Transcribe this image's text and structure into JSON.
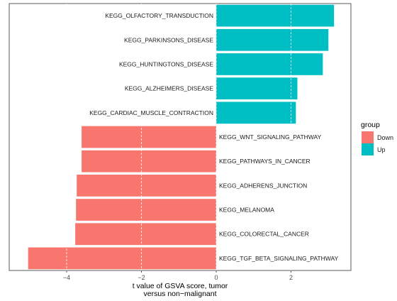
{
  "chart_data": {
    "type": "bar",
    "orientation": "horizontal",
    "xlabel": [
      "t value of GSVA score, tumor",
      "versus non−malignant"
    ],
    "ylabel": "",
    "xlim": [
      -5.4,
      3.4
    ],
    "xticks": [
      -4,
      -2,
      0,
      2
    ],
    "xtick_labels": [
      "−4",
      "−2",
      "0",
      "2"
    ],
    "grid": "x-major dashed white",
    "legend": {
      "title": "group",
      "position": "right",
      "entries": [
        {
          "label": "Down",
          "color": "#F8766D"
        },
        {
          "label": "Up",
          "color": "#00BFC4"
        }
      ]
    },
    "bars": [
      {
        "label": "KEGG_OLFACTORY_TRANSDUCTION",
        "value": 3.15,
        "group": "Up"
      },
      {
        "label": "KEGG_PARKINSONS_DISEASE",
        "value": 3.0,
        "group": "Up"
      },
      {
        "label": "KEGG_HUNTINGTONS_DISEASE",
        "value": 2.85,
        "group": "Up"
      },
      {
        "label": "KEGG_ALZHEIMERS_DISEASE",
        "value": 2.17,
        "group": "Up"
      },
      {
        "label": "KEGG_CARDIAC_MUSCLE_CONTRACTION",
        "value": 2.13,
        "group": "Up"
      },
      {
        "label": "KEGG_WNT_SIGNALING_PATHWAY",
        "value": -3.6,
        "group": "Down"
      },
      {
        "label": "KEGG_PATHWAYS_IN_CANCER",
        "value": -3.6,
        "group": "Down"
      },
      {
        "label": "KEGG_ADHERENS_JUNCTION",
        "value": -3.73,
        "group": "Down"
      },
      {
        "label": "KEGG_MELANOMA",
        "value": -3.75,
        "group": "Down"
      },
      {
        "label": "KEGG_COLORECTAL_CANCER",
        "value": -3.77,
        "group": "Down"
      },
      {
        "label": "KEGG_TGF_BETA_SIGNALING_PATHWAY",
        "value": -5.03,
        "group": "Down"
      }
    ]
  }
}
